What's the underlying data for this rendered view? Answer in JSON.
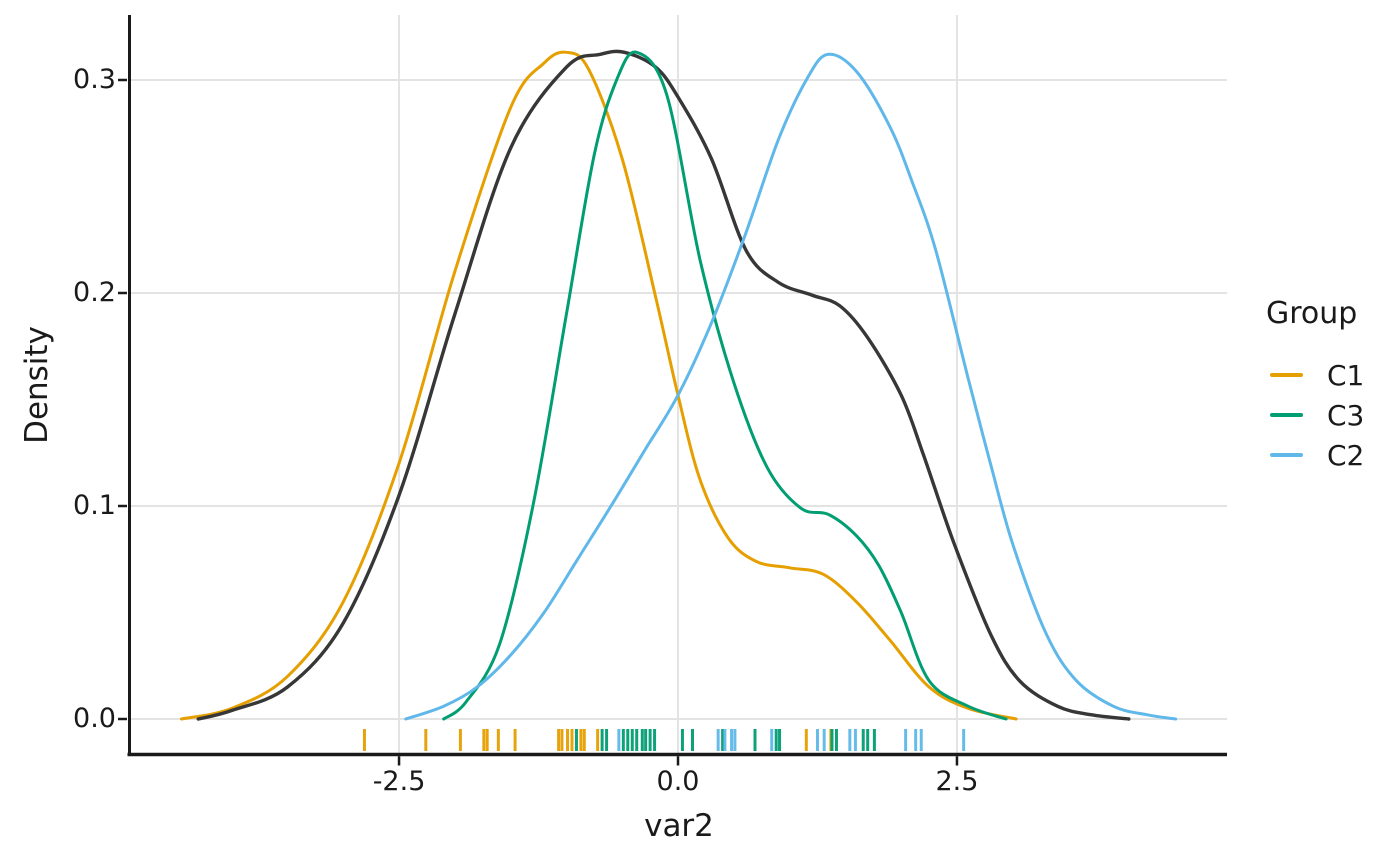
{
  "chart_data": {
    "type": "line",
    "variant": "kde-density-with-rug",
    "title": "",
    "xlabel": "var2",
    "ylabel": "Density",
    "xlim": [
      -4.92,
      4.92
    ],
    "ylim": [
      0,
      0.33
    ],
    "grid": true,
    "x_ticks": {
      "values": [
        -2.5,
        0.0,
        2.5
      ],
      "labels": [
        "-2.5",
        "0.0",
        "2.5"
      ]
    },
    "y_ticks": {
      "values": [
        0.0,
        0.1,
        0.2,
        0.3
      ],
      "labels": [
        "0.0",
        "0.1",
        "0.2",
        "0.3"
      ]
    },
    "legend": {
      "title": "Group",
      "position": "right"
    },
    "colors": {
      "grid": "#e3e3e3",
      "axis": "#1a1a1a",
      "overall_curve": "#373737",
      "C1": "#E69F00",
      "C2": "#5FB8E9",
      "C3": "#029E73"
    },
    "series": [
      {
        "name": "C1",
        "color": "#E69F00",
        "in_legend": true,
        "stroke_width": 3,
        "points": [
          [
            -4.45,
            0.0
          ],
          [
            -4.0,
            0.005
          ],
          [
            -3.5,
            0.02
          ],
          [
            -3.0,
            0.055
          ],
          [
            -2.5,
            0.12
          ],
          [
            -2.0,
            0.21
          ],
          [
            -1.5,
            0.287
          ],
          [
            -1.2,
            0.308
          ],
          [
            -1.0,
            0.313
          ],
          [
            -0.8,
            0.305
          ],
          [
            -0.5,
            0.263
          ],
          [
            -0.2,
            0.198
          ],
          [
            0.0,
            0.152
          ],
          [
            0.2,
            0.112
          ],
          [
            0.45,
            0.085
          ],
          [
            0.7,
            0.074
          ],
          [
            1.0,
            0.071
          ],
          [
            1.3,
            0.068
          ],
          [
            1.6,
            0.055
          ],
          [
            1.9,
            0.037
          ],
          [
            2.25,
            0.015
          ],
          [
            2.6,
            0.005
          ],
          [
            3.03,
            0.0
          ]
        ],
        "rug": [
          -2.81,
          -2.26,
          -1.95,
          -1.74,
          -1.71,
          -1.61,
          -1.46,
          -1.07,
          -1.04,
          -0.99,
          -0.95,
          -0.87,
          -0.84,
          -0.72,
          1.15,
          1.37
        ]
      },
      {
        "name": "All",
        "color": "#373737",
        "in_legend": false,
        "stroke_width": 3.4,
        "points": [
          [
            -4.3,
            0.0
          ],
          [
            -4.0,
            0.004
          ],
          [
            -3.5,
            0.015
          ],
          [
            -3.0,
            0.045
          ],
          [
            -2.5,
            0.105
          ],
          [
            -2.0,
            0.19
          ],
          [
            -1.5,
            0.268
          ],
          [
            -1.0,
            0.306
          ],
          [
            -0.7,
            0.312
          ],
          [
            -0.48,
            0.313
          ],
          [
            -0.2,
            0.306
          ],
          [
            0.0,
            0.292
          ],
          [
            0.3,
            0.263
          ],
          [
            0.61,
            0.22
          ],
          [
            0.9,
            0.205
          ],
          [
            1.2,
            0.199
          ],
          [
            1.45,
            0.194
          ],
          [
            1.7,
            0.179
          ],
          [
            2.0,
            0.152
          ],
          [
            2.2,
            0.124
          ],
          [
            2.47,
            0.083
          ],
          [
            2.8,
            0.04
          ],
          [
            3.06,
            0.018
          ],
          [
            3.4,
            0.006
          ],
          [
            3.7,
            0.002
          ],
          [
            4.04,
            0.0
          ]
        ],
        "rug": []
      },
      {
        "name": "C3",
        "color": "#029E73",
        "in_legend": true,
        "stroke_width": 3,
        "points": [
          [
            -2.1,
            0.0
          ],
          [
            -1.9,
            0.008
          ],
          [
            -1.6,
            0.035
          ],
          [
            -1.3,
            0.1
          ],
          [
            -1.0,
            0.19
          ],
          [
            -0.75,
            0.265
          ],
          [
            -0.55,
            0.3
          ],
          [
            -0.37,
            0.313
          ],
          [
            -0.1,
            0.293
          ],
          [
            0.2,
            0.215
          ],
          [
            0.5,
            0.158
          ],
          [
            0.8,
            0.118
          ],
          [
            1.1,
            0.099
          ],
          [
            1.35,
            0.096
          ],
          [
            1.6,
            0.086
          ],
          [
            1.8,
            0.072
          ],
          [
            2.0,
            0.05
          ],
          [
            2.25,
            0.018
          ],
          [
            2.6,
            0.006
          ],
          [
            2.94,
            0.0
          ]
        ],
        "rug": [
          -0.91,
          -0.68,
          -0.64,
          -0.49,
          -0.45,
          -0.41,
          -0.37,
          -0.32,
          -0.29,
          -0.25,
          -0.21,
          0.04,
          0.13,
          0.4,
          0.69,
          0.88,
          0.91,
          1.38,
          1.42,
          1.66,
          1.7,
          1.76
        ]
      },
      {
        "name": "C2",
        "color": "#5FB8E9",
        "in_legend": true,
        "stroke_width": 3,
        "points": [
          [
            -2.44,
            0.0
          ],
          [
            -2.1,
            0.006
          ],
          [
            -1.8,
            0.015
          ],
          [
            -1.5,
            0.03
          ],
          [
            -1.2,
            0.05
          ],
          [
            -0.9,
            0.075
          ],
          [
            -0.6,
            0.1
          ],
          [
            -0.3,
            0.126
          ],
          [
            0.0,
            0.152
          ],
          [
            0.3,
            0.186
          ],
          [
            0.6,
            0.227
          ],
          [
            0.9,
            0.272
          ],
          [
            1.15,
            0.3
          ],
          [
            1.34,
            0.312
          ],
          [
            1.6,
            0.304
          ],
          [
            1.9,
            0.278
          ],
          [
            2.1,
            0.252
          ],
          [
            2.31,
            0.22
          ],
          [
            2.6,
            0.16
          ],
          [
            2.8,
            0.12
          ],
          [
            3.0,
            0.082
          ],
          [
            3.3,
            0.04
          ],
          [
            3.57,
            0.018
          ],
          [
            3.9,
            0.006
          ],
          [
            4.2,
            0.002
          ],
          [
            4.46,
            0.0
          ]
        ],
        "rug": [
          -0.53,
          0.36,
          0.42,
          0.48,
          0.51,
          0.84,
          1.25,
          1.31,
          1.54,
          1.59,
          2.04,
          2.13,
          2.18,
          2.56
        ]
      }
    ]
  }
}
